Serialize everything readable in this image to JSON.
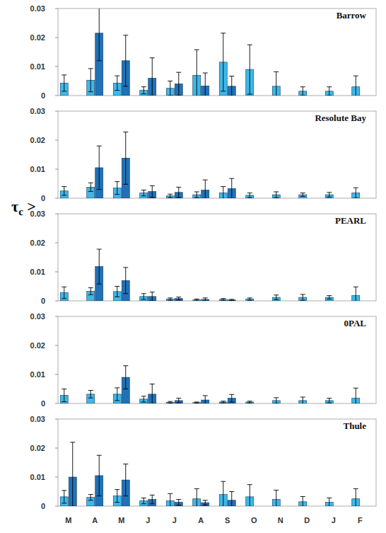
{
  "chart_data": [
    {
      "type": "bar",
      "title": "Barrow",
      "categories": [
        "M",
        "A",
        "M",
        "J",
        "J",
        "A",
        "S",
        "O",
        "N",
        "D",
        "J",
        "F"
      ],
      "series": [
        {
          "color": "#3db8ea",
          "values": [
            0.0043,
            0.0053,
            0.0043,
            0.0018,
            0.0025,
            0.007,
            0.0115,
            0.009,
            0.0032,
            0.0015,
            0.0015,
            0.003
          ],
          "errors": [
            0.0028,
            0.004,
            0.0025,
            0.0012,
            0.0025,
            0.0088,
            0.01,
            0.0085,
            0.005,
            0.0015,
            0.0015,
            0.0038
          ]
        },
        {
          "color": "#1f72b8",
          "values": [
            null,
            0.0215,
            0.012,
            0.006,
            0.004,
            0.0033,
            0.0032,
            null,
            null,
            null,
            null,
            null
          ],
          "errors": [
            null,
            0.0095,
            0.0088,
            0.007,
            0.004,
            0.0045,
            0.0035,
            null,
            null,
            null,
            null,
            null
          ]
        }
      ],
      "ylim": [
        0,
        0.03
      ],
      "yticks": [
        0,
        0.01,
        0.02,
        0.03
      ],
      "grid": false,
      "tick_labels": "y"
    },
    {
      "type": "bar",
      "title": "Resolute Bay",
      "categories": [
        "M",
        "A",
        "M",
        "J",
        "J",
        "A",
        "S",
        "O",
        "N",
        "D",
        "J",
        "F"
      ],
      "series": [
        {
          "color": "#3db8ea",
          "values": [
            0.0025,
            0.0038,
            0.0035,
            0.0018,
            0.0008,
            0.0012,
            0.0018,
            0.001,
            0.0012,
            0.0012,
            0.0012,
            0.0018
          ],
          "errors": [
            0.0015,
            0.0015,
            0.0022,
            0.001,
            0.0006,
            0.001,
            0.0022,
            0.0008,
            0.001,
            0.0006,
            0.0008,
            0.0018
          ]
        },
        {
          "color": "#1f72b8",
          "values": [
            null,
            0.0105,
            0.0138,
            0.0023,
            0.002,
            0.0028,
            0.0033,
            null,
            null,
            null,
            null,
            null
          ],
          "errors": [
            null,
            0.0075,
            0.009,
            0.002,
            0.0018,
            0.0035,
            0.0035,
            null,
            null,
            null,
            null,
            null
          ]
        }
      ],
      "ylim": [
        0,
        0.03
      ],
      "yticks": [
        0,
        0.01,
        0.02,
        0.03
      ],
      "grid": false,
      "tick_labels": "y"
    },
    {
      "type": "bar",
      "title": "PEARL",
      "ylabel": "τc >",
      "categories": [
        "M",
        "A",
        "M",
        "J",
        "J",
        "A",
        "S",
        "O",
        "N",
        "D",
        "J",
        "F"
      ],
      "series": [
        {
          "color": "#3db8ea",
          "values": [
            0.0028,
            0.0033,
            0.0032,
            0.0015,
            0.0006,
            0.0003,
            0.0005,
            0.0006,
            0.0012,
            0.0012,
            0.0012,
            0.0018
          ],
          "errors": [
            0.002,
            0.0012,
            0.0018,
            0.001,
            0.0004,
            0.0003,
            0.0003,
            0.0004,
            0.0008,
            0.001,
            0.0006,
            0.003
          ]
        },
        {
          "color": "#1f72b8",
          "values": [
            null,
            0.0118,
            0.007,
            0.0015,
            0.0008,
            0.0005,
            0.0003,
            null,
            null,
            null,
            null,
            null
          ],
          "errors": [
            null,
            0.006,
            0.0045,
            0.0015,
            0.0005,
            0.0005,
            0.0002,
            null,
            null,
            null,
            null,
            null
          ]
        }
      ],
      "ylim": [
        0,
        0.03
      ],
      "yticks": [
        0,
        0.01,
        0.02,
        0.03
      ],
      "grid": false,
      "tick_labels": "y"
    },
    {
      "type": "bar",
      "title": "0PAL",
      "categories": [
        "M",
        "A",
        "M",
        "J",
        "J",
        "A",
        "S",
        "O",
        "N",
        "D",
        "J",
        "F"
      ],
      "series": [
        {
          "color": "#3db8ea",
          "values": [
            0.0028,
            0.0032,
            0.0032,
            0.0015,
            0.0004,
            0.0003,
            0.0005,
            0.0005,
            0.001,
            0.001,
            0.001,
            0.0018
          ],
          "errors": [
            0.0022,
            0.0013,
            0.0022,
            0.001,
            0.0003,
            0.0002,
            0.0003,
            0.0003,
            0.001,
            0.0012,
            0.0008,
            0.0035
          ]
        },
        {
          "color": "#1f72b8",
          "values": [
            null,
            null,
            0.009,
            0.0032,
            0.001,
            0.0012,
            0.0018,
            null,
            null,
            null,
            null,
            null
          ],
          "errors": [
            null,
            null,
            0.004,
            0.0035,
            0.0008,
            0.0015,
            0.0013,
            null,
            null,
            null,
            null,
            null
          ]
        }
      ],
      "ylim": [
        0,
        0.03
      ],
      "yticks": [
        0,
        0.01,
        0.02,
        0.03
      ],
      "grid": false,
      "tick_labels": "y"
    },
    {
      "type": "bar",
      "title": "Thule",
      "categories": [
        "M",
        "A",
        "M",
        "J",
        "J",
        "A",
        "S",
        "O",
        "N",
        "D",
        "J",
        "F"
      ],
      "series": [
        {
          "color": "#3db8ea",
          "values": [
            0.0032,
            0.003,
            0.0035,
            0.0018,
            0.0018,
            0.0025,
            0.004,
            0.0032,
            0.0023,
            0.0015,
            0.0013,
            0.0025
          ],
          "errors": [
            0.0022,
            0.001,
            0.0022,
            0.001,
            0.0025,
            0.0035,
            0.0045,
            0.0042,
            0.0032,
            0.0018,
            0.0015,
            0.0035
          ]
        },
        {
          "color": "#1f72b8",
          "values": [
            0.01,
            0.0105,
            0.009,
            0.0023,
            0.0013,
            0.0012,
            0.002,
            null,
            null,
            null,
            null,
            null
          ],
          "errors": [
            0.012,
            0.007,
            0.0055,
            0.0015,
            0.001,
            0.0008,
            0.003,
            null,
            null,
            null,
            null,
            null
          ]
        }
      ],
      "ylim": [
        0,
        0.03
      ],
      "yticks": [
        0,
        0.01,
        0.02,
        0.03
      ],
      "grid": false
    }
  ]
}
